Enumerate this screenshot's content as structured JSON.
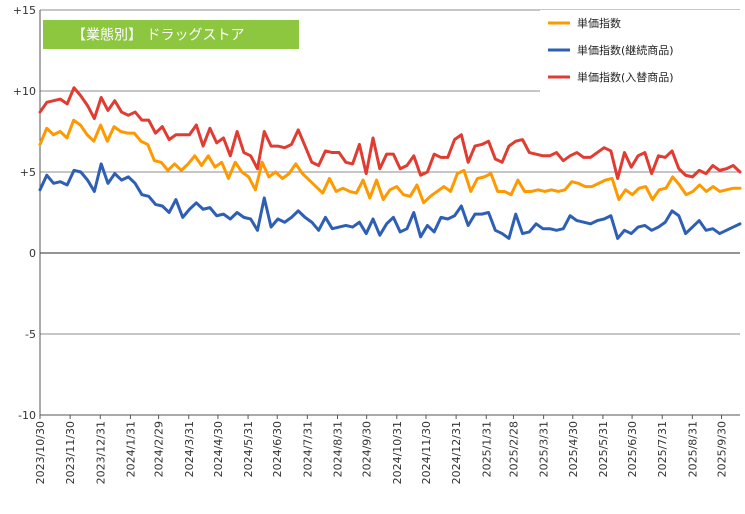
{
  "chart_data": {
    "type": "line",
    "title": "【業態別】 ドラッグストア",
    "title_bg_color": "#8dc63f",
    "y_range": [
      -10,
      15
    ],
    "y_ticks": [
      {
        "value": 15,
        "label": "+15"
      },
      {
        "value": 10,
        "label": "+10"
      },
      {
        "value": 5,
        "label": "+5"
      },
      {
        "value": 0,
        "label": "0"
      },
      {
        "value": -5,
        "label": "-5"
      },
      {
        "value": -10,
        "label": "-10"
      }
    ],
    "gridlines": [
      15,
      10,
      5,
      0,
      -5
    ],
    "x_start": "2023-10-30",
    "x_end": "2025-10-19",
    "x_tick_labels": [
      "2023/10/30",
      "2023/11/30",
      "2023/12/31",
      "2024/1/31",
      "2024/2/29",
      "2024/3/31",
      "2024/4/30",
      "2024/5/31",
      "2024/6/30",
      "2024/7/31",
      "2024/8/31",
      "2024/9/30",
      "2024/10/31",
      "2024/11/30",
      "2024/12/31",
      "2025/1/31",
      "2025/2/28",
      "2025/3/31",
      "2025/4/30",
      "2025/5/31",
      "2025/6/30",
      "2025/7/31",
      "2025/8/31",
      "2025/9/30"
    ],
    "legend_position": "top-right",
    "series": [
      {
        "name": "単価指数",
        "color": "#ff9900",
        "values": [
          6.7,
          7.7,
          7.3,
          7.5,
          7.1,
          8.2,
          7.9,
          7.3,
          6.9,
          7.9,
          6.9,
          7.8,
          7.5,
          7.4,
          7.4,
          6.9,
          6.7,
          5.7,
          5.6,
          5.1,
          5.5,
          5.1,
          5.5,
          6.0,
          5.4,
          6.0,
          5.3,
          5.6,
          4.6,
          5.6,
          5.0,
          4.7,
          3.9,
          5.6,
          4.7,
          5.0,
          4.6,
          4.9,
          5.5,
          4.9,
          4.5,
          4.1,
          3.7,
          4.6,
          3.8,
          4.0,
          3.8,
          3.7,
          4.5,
          3.4,
          4.5,
          3.3,
          3.9,
          4.1,
          3.6,
          3.5,
          4.2,
          3.1,
          3.5,
          3.8,
          4.1,
          3.8,
          4.9,
          5.1,
          3.8,
          4.6,
          4.7,
          4.9,
          3.8,
          3.8,
          3.6,
          4.5,
          3.8,
          3.8,
          3.9,
          3.8,
          3.9,
          3.8,
          3.9,
          4.4,
          4.3,
          4.1,
          4.1,
          4.3,
          4.5,
          4.6,
          3.3,
          3.9,
          3.6,
          4.0,
          4.1,
          3.3,
          3.9,
          4.0,
          4.7,
          4.2,
          3.6,
          3.8,
          4.2,
          3.8,
          4.1,
          3.8,
          3.9,
          4.0,
          4.0
        ]
      },
      {
        "name": "単価指数(継続商品)",
        "color": "#2e5fb5",
        "values": [
          3.9,
          4.8,
          4.3,
          4.4,
          4.2,
          5.1,
          5.0,
          4.5,
          3.8,
          5.5,
          4.3,
          4.9,
          4.5,
          4.7,
          4.3,
          3.6,
          3.5,
          3.0,
          2.9,
          2.5,
          3.3,
          2.2,
          2.7,
          3.1,
          2.7,
          2.8,
          2.3,
          2.4,
          2.1,
          2.5,
          2.2,
          2.1,
          1.4,
          3.4,
          1.6,
          2.1,
          1.9,
          2.2,
          2.6,
          2.2,
          1.9,
          1.4,
          2.2,
          1.5,
          1.6,
          1.7,
          1.6,
          1.9,
          1.2,
          2.1,
          1.1,
          1.8,
          2.2,
          1.3,
          1.5,
          2.5,
          1.0,
          1.7,
          1.3,
          2.2,
          2.1,
          2.3,
          2.9,
          1.7,
          2.4,
          2.4,
          2.5,
          1.4,
          1.2,
          0.9,
          2.4,
          1.2,
          1.3,
          1.8,
          1.5,
          1.5,
          1.4,
          1.5,
          2.3,
          2.0,
          1.9,
          1.8,
          2.0,
          2.1,
          2.3,
          0.9,
          1.4,
          1.2,
          1.6,
          1.7,
          1.4,
          1.6,
          1.9,
          2.6,
          2.3,
          1.2,
          1.6,
          2.0,
          1.4,
          1.5,
          1.2,
          1.4,
          1.6,
          1.8
        ]
      },
      {
        "name": "単価指数(入替商品)",
        "color": "#e03c31",
        "values": [
          8.7,
          9.3,
          9.4,
          9.5,
          9.2,
          10.2,
          9.7,
          9.1,
          8.3,
          9.6,
          8.8,
          9.4,
          8.7,
          8.5,
          8.7,
          8.2,
          8.2,
          7.4,
          7.8,
          7.0,
          7.3,
          7.3,
          7.3,
          7.9,
          6.6,
          7.7,
          6.8,
          7.1,
          6.0,
          7.5,
          6.2,
          6.0,
          5.2,
          7.5,
          6.6,
          6.6,
          6.5,
          6.7,
          7.6,
          6.6,
          5.6,
          5.4,
          6.3,
          6.2,
          6.2,
          5.6,
          5.5,
          6.7,
          4.9,
          7.1,
          5.2,
          6.1,
          6.1,
          5.2,
          5.4,
          6.0,
          4.8,
          5.0,
          6.1,
          5.9,
          5.9,
          7.0,
          7.3,
          5.6,
          6.6,
          6.7,
          6.9,
          5.8,
          5.6,
          6.6,
          6.9,
          7.0,
          6.2,
          6.1,
          6.0,
          6.0,
          6.2,
          5.7,
          6.0,
          6.2,
          5.9,
          5.9,
          6.2,
          6.5,
          6.3,
          4.6,
          6.2,
          5.3,
          6.0,
          6.2,
          4.9,
          6.0,
          5.9,
          6.3,
          5.2,
          4.8,
          4.7,
          5.1,
          4.9,
          5.4,
          5.1,
          5.2,
          5.4,
          5.0
        ]
      }
    ]
  }
}
